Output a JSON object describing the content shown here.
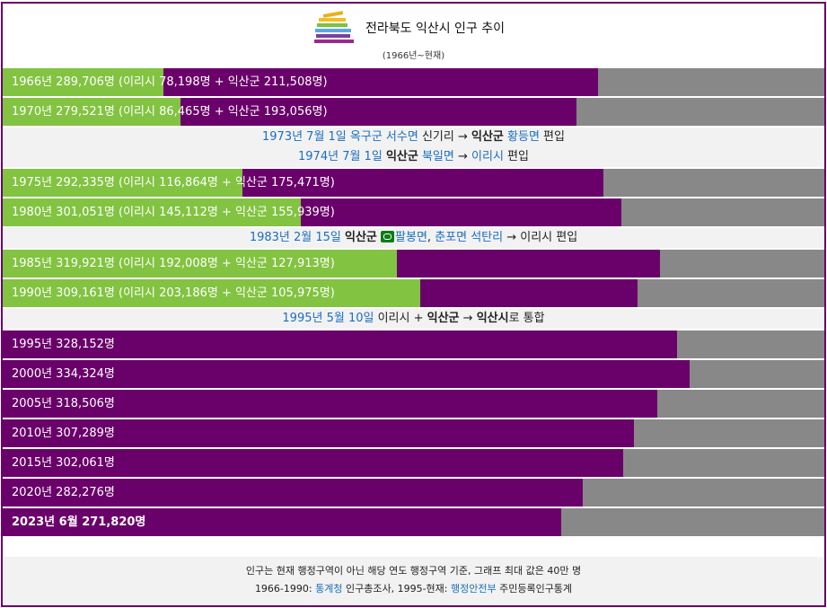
{
  "title": "전라북도 익산시 인구 추이",
  "subtitle": "(1966년~현재)",
  "colors": {
    "total": "#6a006a",
    "iri": "#82c341",
    "remainder": "#888888",
    "link": "#1a6ec0"
  },
  "chart_data": {
    "type": "bar",
    "orientation": "horizontal",
    "xlim": [
      0,
      400000
    ],
    "unit": "명",
    "series": [
      {
        "values": [
          289706,
          279521,
          292335,
          301051,
          319921,
          309161,
          328152,
          334324,
          318506,
          307289,
          302061,
          282276,
          271820
        ]
      },
      {
        "values": [
          78198,
          86465,
          116864,
          145112,
          192008,
          203186,
          null,
          null,
          null,
          null,
          null,
          null,
          null
        ]
      },
      {
        "values": [
          211508,
          193056,
          175471,
          155939,
          127913,
          105975,
          null,
          null,
          null,
          null,
          null,
          null,
          null
        ]
      }
    ],
    "categories": [
      "1966",
      "1970",
      "1975",
      "1980",
      "1985",
      "1990",
      "1995",
      "2000",
      "2005",
      "2010",
      "2015",
      "2020",
      "2023년 6월"
    ]
  },
  "rows": [
    {
      "kind": "bar",
      "total": 289706,
      "iri": 78198,
      "label": "1966년 289,706명 (이리시 78,198명 + 익산군 211,508명)"
    },
    {
      "kind": "bar",
      "total": 279521,
      "iri": 86465,
      "label": "1970년 279,521명 (이리시 86,465명 + 익산군 193,056명)"
    },
    {
      "kind": "note",
      "lines": [
        [
          {
            "t": "1973년 7월 1일",
            "s": "link"
          },
          {
            "t": " "
          },
          {
            "t": "옥구군 서수면",
            "s": "link"
          },
          {
            "t": " 신기리 → "
          },
          {
            "t": "익산군",
            "s": "bold"
          },
          {
            "t": " "
          },
          {
            "t": "황등면",
            "s": "link"
          },
          {
            "t": " 편입"
          }
        ],
        [
          {
            "t": "1974년 7월 1일",
            "s": "link"
          },
          {
            "t": " "
          },
          {
            "t": "익산군",
            "s": "bold"
          },
          {
            "t": " "
          },
          {
            "t": "북일면",
            "s": "link"
          },
          {
            "t": " → "
          },
          {
            "t": "이리시",
            "s": "link"
          },
          {
            "t": " 편입"
          }
        ]
      ]
    },
    {
      "kind": "bar",
      "total": 292335,
      "iri": 116864,
      "label": "1975년 292,335명 (이리시 116,864명 + 익산군 175,471명)"
    },
    {
      "kind": "bar",
      "total": 301051,
      "iri": 145112,
      "label": "1980년 301,051명 (이리시 145,112명 + 익산군 155,939명)"
    },
    {
      "kind": "note",
      "lines": [
        [
          {
            "t": "1983년 2월 15일",
            "s": "link"
          },
          {
            "t": " "
          },
          {
            "t": "익산군",
            "s": "bold"
          },
          {
            "t": " "
          },
          {
            "t": "",
            "s": "tag"
          },
          {
            "t": "팔봉면",
            "s": "link"
          },
          {
            "t": ", "
          },
          {
            "t": "춘포면 석탄리",
            "s": "link"
          },
          {
            "t": " → 이리시 편입"
          }
        ]
      ]
    },
    {
      "kind": "bar",
      "total": 319921,
      "iri": 192008,
      "label": "1985년 319,921명 (이리시 192,008명 + 익산군 127,913명)"
    },
    {
      "kind": "bar",
      "total": 309161,
      "iri": 203186,
      "label": "1990년 309,161명 (이리시 203,186명 + 익산군 105,975명)"
    },
    {
      "kind": "note",
      "lines": [
        [
          {
            "t": "1995년 5월 10일",
            "s": "link"
          },
          {
            "t": " 이리시 + "
          },
          {
            "t": "익산군",
            "s": "bold"
          },
          {
            "t": " → "
          },
          {
            "t": "익산시",
            "s": "bold"
          },
          {
            "t": "로 통합"
          }
        ]
      ]
    },
    {
      "kind": "bar",
      "total": 328152,
      "label": "1995년 328,152명"
    },
    {
      "kind": "bar",
      "total": 334324,
      "label": "2000년 334,324명"
    },
    {
      "kind": "bar",
      "total": 318506,
      "label": "2005년 318,506명"
    },
    {
      "kind": "bar",
      "total": 307289,
      "label": "2010년 307,289명"
    },
    {
      "kind": "bar",
      "total": 302061,
      "label": "2015년 302,061명"
    },
    {
      "kind": "bar",
      "total": 282276,
      "label": "2020년 282,276명"
    },
    {
      "kind": "bar",
      "total": 271820,
      "label": "2023년 6월 271,820명",
      "bold": true
    }
  ],
  "footer": {
    "line1": "인구는 현재 행정구역이 아닌 해당 연도 행정구역 기준, 그래프 최대 값은 40만 명",
    "line2_prefix": "1966-1990: ",
    "line2_link1": "통계청",
    "line2_mid": " 인구총조사, 1995-현재: ",
    "line2_link2": "행정안전부",
    "line2_suffix": " 주민등록인구통계"
  }
}
